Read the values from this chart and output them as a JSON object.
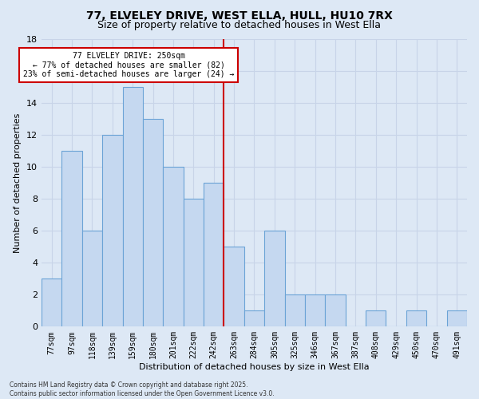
{
  "title": "77, ELVELEY DRIVE, WEST ELLA, HULL, HU10 7RX",
  "subtitle": "Size of property relative to detached houses in West Ella",
  "xlabel": "Distribution of detached houses by size in West Ella",
  "ylabel": "Number of detached properties",
  "categories": [
    "77sqm",
    "97sqm",
    "118sqm",
    "139sqm",
    "159sqm",
    "180sqm",
    "201sqm",
    "222sqm",
    "242sqm",
    "263sqm",
    "284sqm",
    "305sqm",
    "325sqm",
    "346sqm",
    "367sqm",
    "387sqm",
    "408sqm",
    "429sqm",
    "450sqm",
    "470sqm",
    "491sqm"
  ],
  "values": [
    3,
    11,
    6,
    12,
    15,
    13,
    10,
    8,
    9,
    5,
    1,
    6,
    2,
    2,
    2,
    0,
    1,
    0,
    1,
    0,
    1
  ],
  "bar_color": "#c5d8f0",
  "bar_edge_color": "#6ba3d6",
  "ref_line_index": 8,
  "annotation_text": "77 ELVELEY DRIVE: 250sqm\n← 77% of detached houses are smaller (82)\n23% of semi-detached houses are larger (24) →",
  "annotation_box_color": "#ffffff",
  "annotation_box_edge_color": "#cc0000",
  "ylim": [
    0,
    18
  ],
  "yticks": [
    0,
    2,
    4,
    6,
    8,
    10,
    12,
    14,
    16,
    18
  ],
  "grid_color": "#c8d4e8",
  "background_color": "#dde8f5",
  "footer": "Contains HM Land Registry data © Crown copyright and database right 2025.\nContains public sector information licensed under the Open Government Licence v3.0.",
  "title_fontsize": 10,
  "subtitle_fontsize": 9,
  "ylabel_fontsize": 8,
  "xlabel_fontsize": 8,
  "tick_fontsize": 7,
  "annot_fontsize": 7
}
